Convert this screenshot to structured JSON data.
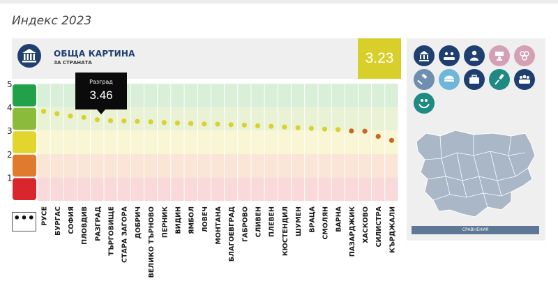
{
  "page_title": "Индекс 2023",
  "panel": {
    "title": "ОБЩА КАРТИНА",
    "subtitle": "ЗА СТРАНАТА",
    "score": "3.23"
  },
  "tooltip": {
    "region": "Разград",
    "value": "3.46"
  },
  "more_label": "•••",
  "compare_label": "СРАВНЕНИЯ",
  "colors": {
    "brand": "#1f3f70",
    "score": "#d8cf2a",
    "dot_yellow": "#d9d22e",
    "dot_orange": "#c9671f"
  },
  "category_icons": [
    {
      "name": "institution-icon",
      "color": "#1f3f70"
    },
    {
      "name": "meeting-icon",
      "color": "#1f3f70"
    },
    {
      "name": "person-icon",
      "color": "#1f3f70"
    },
    {
      "name": "teacher-icon",
      "color": "#d6a0b4"
    },
    {
      "name": "coins-icon",
      "color": "#d6a0b4"
    },
    {
      "name": "gavel-icon",
      "color": "#6f8fb0"
    },
    {
      "name": "police-cap-icon",
      "color": "#6fb7d8"
    },
    {
      "name": "briefcase-icon",
      "color": "#1f3f70"
    },
    {
      "name": "microphone-icon",
      "color": "#1f8a82"
    },
    {
      "name": "crowd-icon",
      "color": "#1f3f70"
    },
    {
      "name": "protected-family-icon",
      "color": "#1f8a82"
    }
  ],
  "chart_data": {
    "type": "scatter",
    "title": "",
    "xlabel": "",
    "ylabel": "",
    "ylim": [
      0,
      5
    ],
    "yticks": [
      "5",
      "4",
      "3",
      "2",
      "1"
    ],
    "bands": [
      {
        "from": 4,
        "to": 5,
        "color": "#22a14a",
        "fill": "#d9efd8"
      },
      {
        "from": 3,
        "to": 4,
        "color": "#8bbb3b",
        "fill": "#eaf2d6"
      },
      {
        "from": 2,
        "to": 3,
        "color": "#e2d62e",
        "fill": "#f8f6d5"
      },
      {
        "from": 1,
        "to": 2,
        "color": "#e07a2c",
        "fill": "#fae5d6"
      },
      {
        "from": 0,
        "to": 1,
        "color": "#d9262c",
        "fill": "#f9d9da"
      }
    ],
    "categories": [
      "РУСЕ",
      "БУРГАС",
      "СОФИЯ",
      "ПЛОВДИВ",
      "РАЗГРАД",
      "ТЪРГОВИЩЕ",
      "СТАРА ЗАГОРА",
      "ДОБРИЧ",
      "ВЕЛИКО ТЪРНОВО",
      "ПЕРНИК",
      "ВИДИН",
      "ЯМБОЛ",
      "ЛОВЕЧ",
      "МОНТАНА",
      "БЛАГОЕВГРАД",
      "ГАБРОВО",
      "СЛИВЕН",
      "ПЛЕВЕН",
      "КЮСТЕНДИЛ",
      "ШУМЕН",
      "ВРАЦА",
      "СМОЛЯН",
      "ВАРНА",
      "ПАЗАРДЖИК",
      "ХАСКОВО",
      "СИЛИСТРА",
      "КЪРДЖАЛИ"
    ],
    "values": [
      3.82,
      3.72,
      3.62,
      3.56,
      3.46,
      3.42,
      3.41,
      3.39,
      3.37,
      3.34,
      3.32,
      3.3,
      3.28,
      3.27,
      3.25,
      3.23,
      3.2,
      3.18,
      3.15,
      3.12,
      3.09,
      3.06,
      3.04,
      2.98,
      2.97,
      2.75,
      2.58
    ],
    "dot_colors": [
      "#d9d22e",
      "#d9d22e",
      "#d9d22e",
      "#d9d22e",
      "#d9d22e",
      "#d9d22e",
      "#d9d22e",
      "#d9d22e",
      "#d9d22e",
      "#d9d22e",
      "#d9d22e",
      "#d9d22e",
      "#d9d22e",
      "#d9d22e",
      "#d9d22e",
      "#d9d22e",
      "#d9d22e",
      "#d9d22e",
      "#d9d22e",
      "#d9d22e",
      "#d9d22e",
      "#d9d22e",
      "#d9d22e",
      "#c9671f",
      "#c9671f",
      "#c9671f",
      "#c9671f"
    ]
  }
}
